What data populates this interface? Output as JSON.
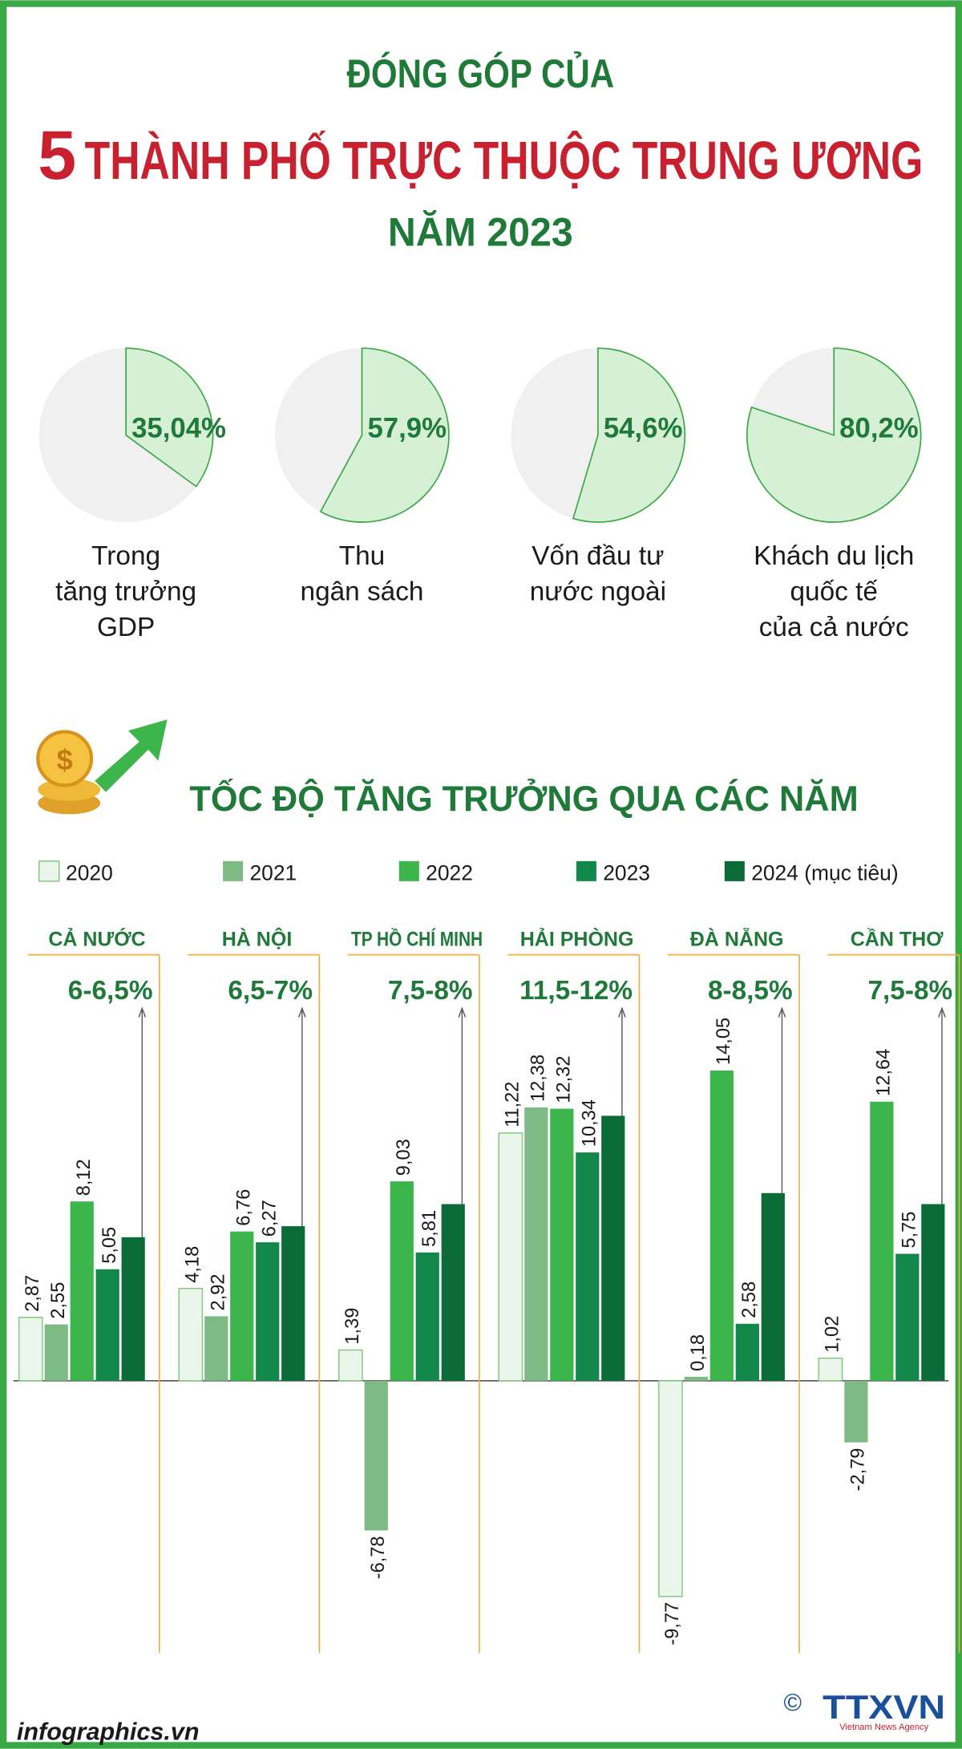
{
  "header": {
    "line1": "ĐÓNG GÓP CỦA",
    "number": "5",
    "line2": "THÀNH PHỐ TRỰC THUỘC TRUNG ƯƠNG",
    "line3": "NĂM 2023"
  },
  "chart_data": [
    {
      "type": "pie",
      "title": [
        "Trong",
        "tăng trưởng",
        "GDP"
      ],
      "values": [
        35.04
      ],
      "value_labels": [
        "35,04%"
      ],
      "color": "#d6f0d6"
    },
    {
      "type": "pie",
      "title": [
        "Thu",
        "ngân sách"
      ],
      "values": [
        57.9
      ],
      "value_labels": [
        "57,9%"
      ],
      "color": "#d6f0d6"
    },
    {
      "type": "pie",
      "title": [
        "Vốn đầu tư",
        "nước ngoài"
      ],
      "values": [
        54.6
      ],
      "value_labels": [
        "54,6%"
      ],
      "color": "#d6f0d6"
    },
    {
      "type": "pie",
      "title": [
        "Khách du lịch",
        "quốc tế",
        "của cả nước"
      ],
      "values": [
        80.2
      ],
      "value_labels": [
        "80,2%"
      ],
      "color": "#d6f0d6"
    },
    {
      "type": "bar",
      "title": "TỐC ĐỘ TĂNG TRƯỞNG QUA CÁC NĂM",
      "categories": [
        "CẢ NƯỚC",
        "HÀ NỘI",
        "TP HỒ CHÍ MINH",
        "HẢI PHÒNG",
        "ĐÀ NẴNG",
        "CẦN THƠ"
      ],
      "annotations": [
        "6-6,5%",
        "6,5-7%",
        "7,5-8%",
        "11,5-12%",
        "8-8,5%",
        "7,5-8%"
      ],
      "series": [
        {
          "name": "2020",
          "color": "#eaf6ea",
          "values": [
            2.87,
            4.18,
            1.39,
            11.22,
            -9.77,
            1.02
          ],
          "value_labels": [
            "2,87",
            "4,18",
            "1,39",
            "11,22",
            "-9,77",
            "1,02"
          ]
        },
        {
          "name": "2021",
          "color": "#7dba84",
          "values": [
            2.55,
            2.92,
            -6.78,
            12.38,
            0.18,
            -2.79
          ],
          "value_labels": [
            "2,55",
            "2,92",
            "-6,78",
            "12,38",
            "0,18",
            "-2,79"
          ]
        },
        {
          "name": "2022",
          "color": "#3cb54a",
          "values": [
            8.12,
            6.76,
            9.03,
            12.32,
            14.05,
            12.64
          ],
          "value_labels": [
            "8,12",
            "6,76",
            "9,03",
            "12,32",
            "14,05",
            "12,64"
          ]
        },
        {
          "name": "2023",
          "color": "#12874a",
          "values": [
            5.05,
            6.27,
            5.81,
            10.34,
            2.58,
            5.75
          ],
          "value_labels": [
            "5,05",
            "6,27",
            "5,81",
            "10,34",
            "2,58",
            "5,75"
          ]
        },
        {
          "name": "2024 (mục tiêu)",
          "color": "#0b6b36",
          "values": [
            6.5,
            7,
            8,
            12,
            8.5,
            8
          ]
        }
      ]
    }
  ],
  "footer": {
    "site": "infographics.vn",
    "copyright": "©",
    "brand": "TTXVN",
    "agency": "Vietnam News Agency"
  }
}
